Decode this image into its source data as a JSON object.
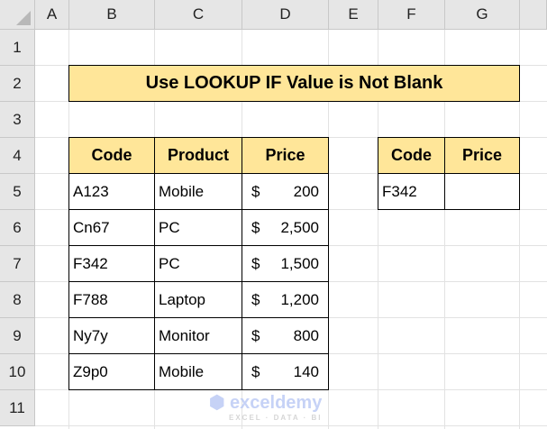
{
  "columns": [
    "A",
    "B",
    "C",
    "D",
    "E",
    "F",
    "G"
  ],
  "rows": [
    "1",
    "2",
    "3",
    "4",
    "5",
    "6",
    "7",
    "8",
    "9",
    "10",
    "11"
  ],
  "title": "Use LOOKUP IF Value is Not Blank",
  "main_table": {
    "headers": [
      "Code",
      "Product",
      "Price"
    ],
    "rows": [
      [
        "A123",
        "Mobile",
        "$",
        "200"
      ],
      [
        "Cn67",
        "PC",
        "$",
        "2,500"
      ],
      [
        "F342",
        "PC",
        "$",
        "1,500"
      ],
      [
        "F788",
        "Laptop",
        "$",
        "1,200"
      ],
      [
        "Ny7y",
        "Monitor",
        "$",
        "800"
      ],
      [
        "Z9p0",
        "Mobile",
        "$",
        "140"
      ]
    ]
  },
  "lookup_table": {
    "headers": [
      "Code",
      "Price"
    ],
    "rows": [
      [
        "F342",
        ""
      ]
    ]
  },
  "watermark": {
    "name": "exceldemy",
    "tagline": "EXCEL · DATA · BI"
  },
  "colors": {
    "header_fill": "#ffe699"
  }
}
